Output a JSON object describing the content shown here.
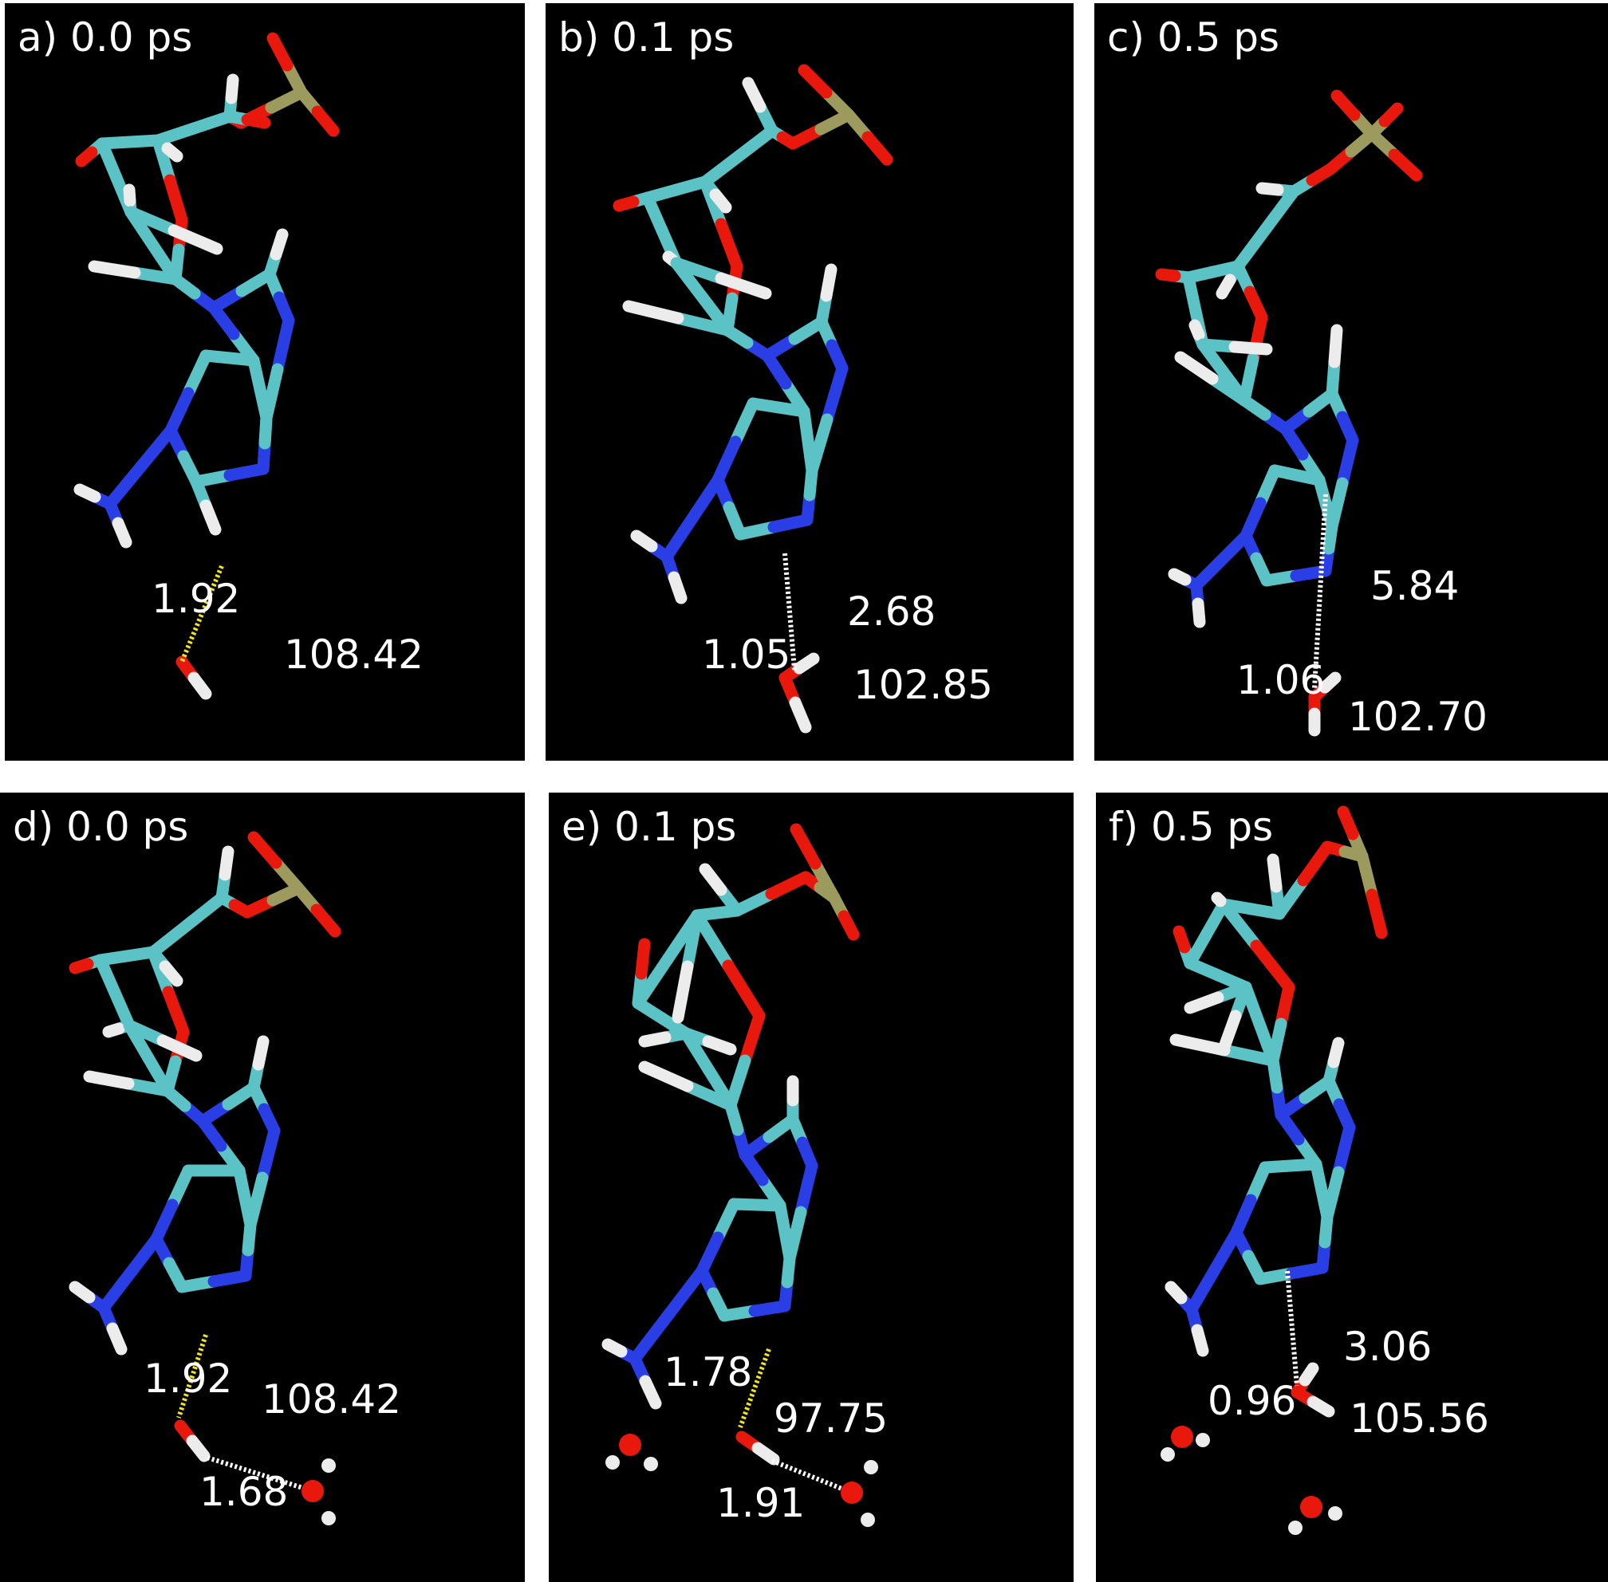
{
  "colors": {
    "carbon": "#5bc2c6",
    "nitrogen": "#2a3ee6",
    "oxygen": "#e8190c",
    "hydrogen": "#ececec",
    "phosphorus": "#9c9a5c",
    "hbond_short": "#f2e51a",
    "hbond_long": "#ffffff",
    "background": "#000000"
  },
  "panels": [
    {
      "label": "a) 0.0 ps",
      "measurements": [
        "1.92",
        "108.42"
      ]
    },
    {
      "label": "b) 0.1 ps",
      "measurements": [
        "2.68",
        "1.05",
        "102.85"
      ]
    },
    {
      "label": "c) 0.5 ps",
      "measurements": [
        "5.84",
        "1.06",
        "102.70"
      ]
    },
    {
      "label": "d) 0.0 ps",
      "measurements": [
        "1.92",
        "108.42",
        "1.68"
      ]
    },
    {
      "label": "e) 0.1 ps",
      "measurements": [
        "1.78",
        "97.75",
        "1.91"
      ]
    },
    {
      "label": "f) 0.5 ps",
      "measurements": [
        "3.06",
        "0.96",
        "105.56"
      ]
    }
  ]
}
